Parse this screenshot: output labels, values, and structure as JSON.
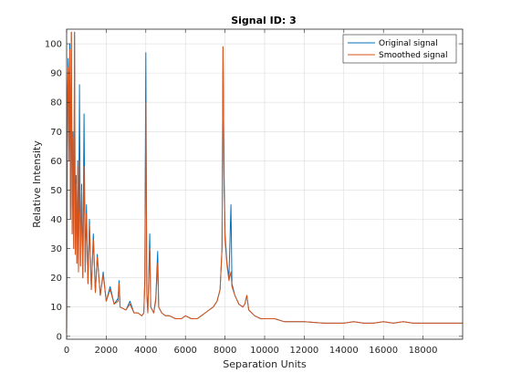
{
  "chart_data": {
    "type": "line",
    "title": "Signal ID: 3",
    "xlabel": "Separation Units",
    "ylabel": "Relative Intensity",
    "xlim": [
      0,
      20000
    ],
    "ylim": [
      -1,
      105
    ],
    "xticks": [
      0,
      2000,
      4000,
      6000,
      8000,
      10000,
      12000,
      14000,
      16000,
      18000
    ],
    "yticks": [
      0,
      10,
      20,
      30,
      40,
      50,
      60,
      70,
      80,
      90,
      100
    ],
    "grid": true,
    "legend_position": "top-right",
    "series": [
      {
        "name": "Original signal",
        "color": "#0072BD",
        "points": [
          [
            0,
            1
          ],
          [
            40,
            80
          ],
          [
            80,
            95
          ],
          [
            120,
            60
          ],
          [
            160,
            100
          ],
          [
            200,
            40
          ],
          [
            240,
            104
          ],
          [
            280,
            35
          ],
          [
            320,
            70
          ],
          [
            360,
            30
          ],
          [
            400,
            104
          ],
          [
            440,
            28
          ],
          [
            480,
            55
          ],
          [
            520,
            25
          ],
          [
            560,
            60
          ],
          [
            600,
            22
          ],
          [
            650,
            86
          ],
          [
            700,
            24
          ],
          [
            760,
            52
          ],
          [
            820,
            20
          ],
          [
            880,
            76
          ],
          [
            940,
            22
          ],
          [
            1000,
            45
          ],
          [
            1080,
            18
          ],
          [
            1150,
            40
          ],
          [
            1250,
            16
          ],
          [
            1350,
            35
          ],
          [
            1450,
            15
          ],
          [
            1550,
            28
          ],
          [
            1700,
            14
          ],
          [
            1850,
            22
          ],
          [
            2000,
            12
          ],
          [
            2200,
            17
          ],
          [
            2400,
            11
          ],
          [
            2600,
            13
          ],
          [
            2650,
            19
          ],
          [
            2700,
            10
          ],
          [
            3000,
            9
          ],
          [
            3200,
            12
          ],
          [
            3400,
            8
          ],
          [
            3600,
            8
          ],
          [
            3800,
            7
          ],
          [
            3900,
            8
          ],
          [
            3950,
            20
          ],
          [
            4000,
            97
          ],
          [
            4050,
            15
          ],
          [
            4100,
            8
          ],
          [
            4200,
            35
          ],
          [
            4250,
            10
          ],
          [
            4400,
            8
          ],
          [
            4500,
            13
          ],
          [
            4600,
            29
          ],
          [
            4650,
            10
          ],
          [
            4800,
            8
          ],
          [
            5000,
            7
          ],
          [
            5200,
            7
          ],
          [
            5500,
            6
          ],
          [
            5800,
            6
          ],
          [
            6000,
            7
          ],
          [
            6300,
            6
          ],
          [
            6600,
            6
          ],
          [
            6800,
            7
          ],
          [
            7000,
            8
          ],
          [
            7200,
            9
          ],
          [
            7400,
            10
          ],
          [
            7600,
            12
          ],
          [
            7750,
            16
          ],
          [
            7850,
            30
          ],
          [
            7900,
            99
          ],
          [
            7950,
            55
          ],
          [
            8000,
            35
          ],
          [
            8100,
            25
          ],
          [
            8200,
            20
          ],
          [
            8300,
            45
          ],
          [
            8350,
            18
          ],
          [
            8500,
            14
          ],
          [
            8700,
            11
          ],
          [
            8900,
            10
          ],
          [
            9000,
            11
          ],
          [
            9100,
            14
          ],
          [
            9200,
            9
          ],
          [
            9500,
            7
          ],
          [
            9800,
            6
          ],
          [
            10000,
            6
          ],
          [
            10500,
            6
          ],
          [
            11000,
            5
          ],
          [
            11500,
            5
          ],
          [
            12000,
            5
          ],
          [
            13000,
            4.5
          ],
          [
            13500,
            4.5
          ],
          [
            14000,
            4.5
          ],
          [
            14500,
            5
          ],
          [
            15000,
            4.5
          ],
          [
            15500,
            4.5
          ],
          [
            16000,
            5
          ],
          [
            16500,
            4.5
          ],
          [
            17000,
            5
          ],
          [
            17500,
            4.5
          ],
          [
            18000,
            4.5
          ],
          [
            19000,
            4.5
          ],
          [
            20000,
            4.5
          ]
        ]
      },
      {
        "name": "Smoothed signal",
        "color": "#D95319",
        "points": [
          [
            0,
            1
          ],
          [
            40,
            78
          ],
          [
            80,
            92
          ],
          [
            120,
            60
          ],
          [
            160,
            98
          ],
          [
            200,
            40
          ],
          [
            240,
            104
          ],
          [
            280,
            35
          ],
          [
            320,
            68
          ],
          [
            360,
            30
          ],
          [
            400,
            104
          ],
          [
            440,
            28
          ],
          [
            480,
            52
          ],
          [
            520,
            25
          ],
          [
            560,
            58
          ],
          [
            600,
            22
          ],
          [
            650,
            60
          ],
          [
            700,
            24
          ],
          [
            760,
            50
          ],
          [
            820,
            20
          ],
          [
            880,
            58
          ],
          [
            940,
            22
          ],
          [
            1000,
            42
          ],
          [
            1080,
            18
          ],
          [
            1150,
            38
          ],
          [
            1250,
            16
          ],
          [
            1350,
            33
          ],
          [
            1450,
            15
          ],
          [
            1550,
            27
          ],
          [
            1700,
            14
          ],
          [
            1850,
            21
          ],
          [
            2000,
            12
          ],
          [
            2200,
            16
          ],
          [
            2400,
            11
          ],
          [
            2600,
            12
          ],
          [
            2650,
            18
          ],
          [
            2700,
            10
          ],
          [
            3000,
            9
          ],
          [
            3200,
            11
          ],
          [
            3400,
            8
          ],
          [
            3600,
            8
          ],
          [
            3800,
            7
          ],
          [
            3900,
            8
          ],
          [
            3950,
            18
          ],
          [
            4000,
            80
          ],
          [
            4050,
            14
          ],
          [
            4100,
            8
          ],
          [
            4200,
            30
          ],
          [
            4250,
            10
          ],
          [
            4400,
            8
          ],
          [
            4500,
            12
          ],
          [
            4600,
            25
          ],
          [
            4650,
            10
          ],
          [
            4800,
            8
          ],
          [
            5000,
            7
          ],
          [
            5200,
            7
          ],
          [
            5500,
            6
          ],
          [
            5800,
            6
          ],
          [
            6000,
            7
          ],
          [
            6300,
            6
          ],
          [
            6600,
            6
          ],
          [
            6800,
            7
          ],
          [
            7000,
            8
          ],
          [
            7200,
            9
          ],
          [
            7400,
            10
          ],
          [
            7600,
            12
          ],
          [
            7750,
            16
          ],
          [
            7850,
            30
          ],
          [
            7900,
            99
          ],
          [
            7950,
            52
          ],
          [
            8000,
            33
          ],
          [
            8100,
            24
          ],
          [
            8200,
            19
          ],
          [
            8300,
            22
          ],
          [
            8350,
            17
          ],
          [
            8500,
            14
          ],
          [
            8700,
            11
          ],
          [
            8900,
            10
          ],
          [
            9000,
            11
          ],
          [
            9100,
            14
          ],
          [
            9200,
            9
          ],
          [
            9500,
            7
          ],
          [
            9800,
            6
          ],
          [
            10000,
            6
          ],
          [
            10500,
            6
          ],
          [
            11000,
            5
          ],
          [
            11500,
            5
          ],
          [
            12000,
            5
          ],
          [
            13000,
            4.5
          ],
          [
            13500,
            4.5
          ],
          [
            14000,
            4.5
          ],
          [
            14500,
            5
          ],
          [
            15000,
            4.5
          ],
          [
            15500,
            4.5
          ],
          [
            16000,
            5
          ],
          [
            16500,
            4.5
          ],
          [
            17000,
            5
          ],
          [
            17500,
            4.5
          ],
          [
            18000,
            4.5
          ],
          [
            19000,
            4.5
          ],
          [
            20000,
            4.5
          ]
        ]
      }
    ]
  }
}
